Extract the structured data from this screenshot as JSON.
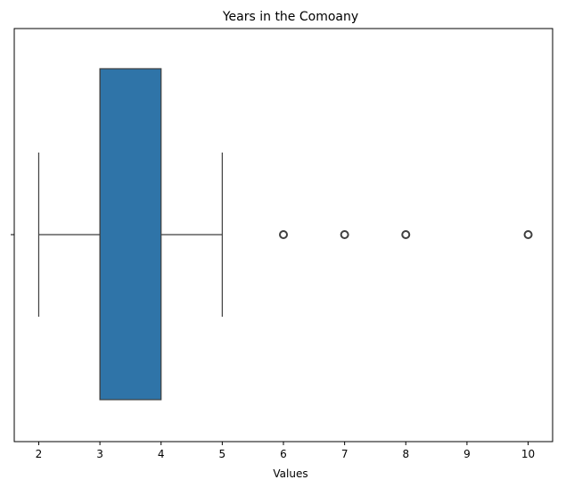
{
  "chart_data": {
    "type": "box",
    "title": "Years in the Comoany",
    "xlabel": "Values",
    "ylabel": "",
    "orientation": "horizontal",
    "xlim": [
      1.6,
      10.4
    ],
    "xticks": [
      2,
      3,
      4,
      5,
      6,
      7,
      8,
      9,
      10
    ],
    "box": {
      "whisker_low": 2,
      "q1": 3,
      "median": 3,
      "q3": 4,
      "whisker_high": 5,
      "outliers": [
        6,
        7,
        8,
        10
      ]
    },
    "grid": false,
    "box_color": "#2f74a8",
    "line_color": "#3f3f3f"
  }
}
